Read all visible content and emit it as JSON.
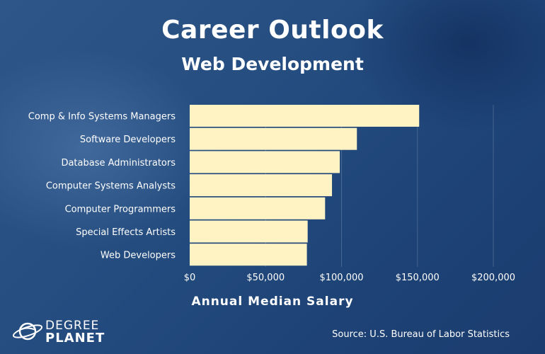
{
  "header": {
    "title": "Career Outlook",
    "subtitle": "Web Development"
  },
  "chart_data": {
    "type": "bar",
    "orientation": "horizontal",
    "title": "Career Outlook",
    "subtitle": "Web Development",
    "xlabel": "Annual Median Salary",
    "ylabel": "",
    "categories": [
      "Comp & Info Systems Managers",
      "Software Developers",
      "Database Administrators",
      "Computer Systems Analysts",
      "Computer Programmers",
      "Special Effects Artists",
      "Web Developers"
    ],
    "values": [
      151150,
      110140,
      98860,
      93730,
      89190,
      77700,
      77200
    ],
    "xlim": [
      0,
      200000
    ],
    "xticks": [
      0,
      50000,
      100000,
      150000,
      200000
    ],
    "xtick_labels": [
      "$0",
      "$50,000",
      "$100,000",
      "$150,000",
      "$200,000"
    ],
    "bar_color": "#fff3c4",
    "grid": "vertical",
    "legend": "none"
  },
  "footer": {
    "source": "Source: U.S. Bureau of Labor Statistics",
    "logo_line1": "DEGREE",
    "logo_line2": "PLANET"
  }
}
